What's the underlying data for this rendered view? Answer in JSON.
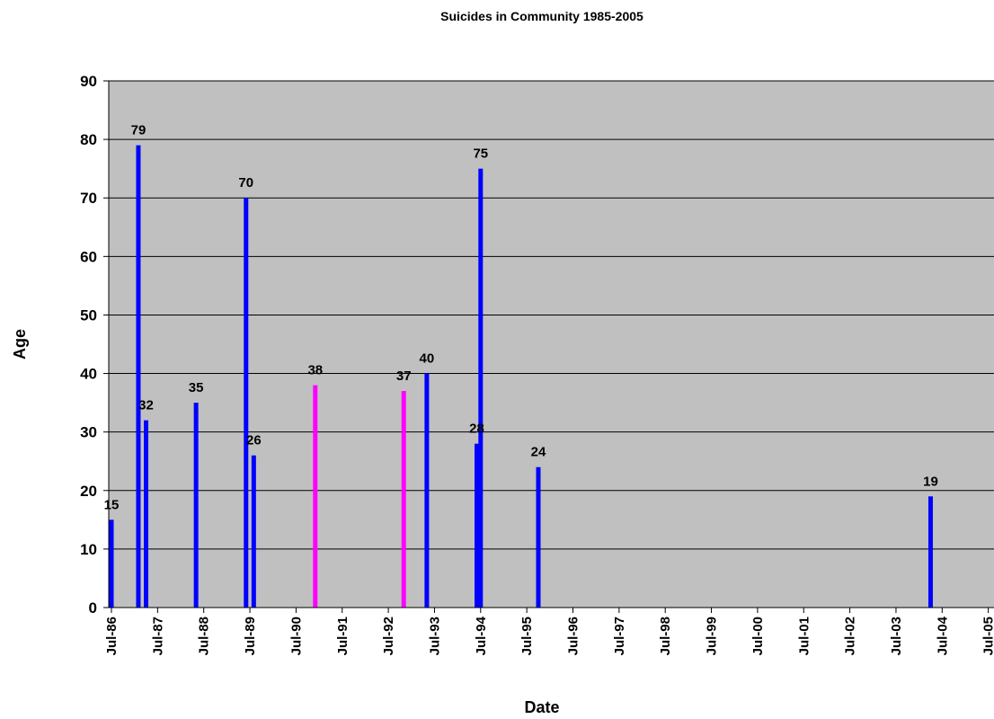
{
  "chart_data": {
    "type": "bar",
    "title": "Suicides in Community 1985-2005",
    "xlabel": "Date",
    "ylabel": "Age",
    "ylim": [
      0,
      90
    ],
    "yticks": [
      0,
      10,
      20,
      30,
      40,
      50,
      60,
      70,
      80,
      90
    ],
    "xlim": [
      "1986-07",
      "2005-07"
    ],
    "xtick_labels": [
      "Jul-86",
      "Jul-87",
      "Jul-88",
      "Jul-89",
      "Jul-90",
      "Jul-91",
      "Jul-92",
      "Jul-93",
      "Jul-94",
      "Jul-95",
      "Jul-96",
      "Jul-97",
      "Jul-98",
      "Jul-99",
      "Jul-00",
      "Jul-01",
      "Jul-02",
      "Jul-03",
      "Jul-04",
      "Jul-05"
    ],
    "grid": true,
    "plot_background": "#c0c0c0",
    "colors": {
      "default": "#0000ff",
      "highlight": "#ff00ff"
    },
    "points": [
      {
        "date": "1986-07",
        "value": 15,
        "color": "#0000ff"
      },
      {
        "date": "1987-02",
        "value": 79,
        "color": "#0000ff"
      },
      {
        "date": "1987-04",
        "value": 32,
        "color": "#0000ff"
      },
      {
        "date": "1988-05",
        "value": 35,
        "color": "#0000ff"
      },
      {
        "date": "1989-06",
        "value": 70,
        "color": "#0000ff"
      },
      {
        "date": "1989-08",
        "value": 26,
        "color": "#0000ff"
      },
      {
        "date": "1990-12",
        "value": 38,
        "color": "#ff00ff"
      },
      {
        "date": "1992-11",
        "value": 37,
        "color": "#ff00ff"
      },
      {
        "date": "1993-05",
        "value": 40,
        "color": "#0000ff"
      },
      {
        "date": "1994-06",
        "value": 28,
        "color": "#0000ff"
      },
      {
        "date": "1994-07",
        "value": 75,
        "color": "#0000ff"
      },
      {
        "date": "1995-10",
        "value": 24,
        "color": "#0000ff"
      },
      {
        "date": "2004-04",
        "value": 19,
        "color": "#0000ff"
      }
    ]
  }
}
